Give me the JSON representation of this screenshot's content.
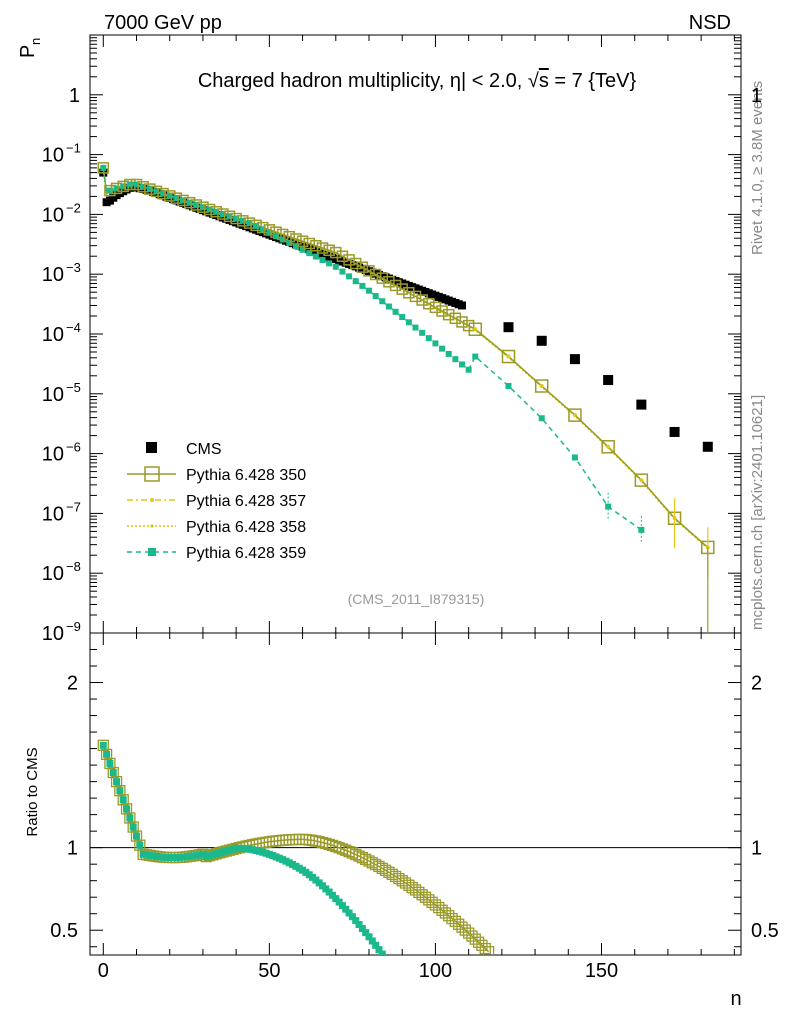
{
  "header": {
    "energy_label": "7000 GeV pp",
    "process_label": "NSD"
  },
  "side_text": {
    "rivet": "Rivet 4.1.0, ≥ 3.8M events",
    "mcplots": "mcplots.cern.ch [arXiv:2401.10621]"
  },
  "analysis_ref": "(CMS_2011_I879315)",
  "chart_data": {
    "type": "scatter",
    "title": "Charged hadron multiplicity, |η| < 2.0, √s = 7 {TeV}",
    "title_parts": {
      "prefix": "Charged hadron multiplicity, ",
      "eta": "η",
      "mid": "| < 2.0, ",
      "sqrt": "√",
      "s": "s",
      "suffix": " = 7 {TeV}"
    },
    "xlabel": "n",
    "ylabel_main": "P",
    "ylabel_main_sub": "n",
    "ylabel_ratio": "Ratio to CMS",
    "xlim": [
      -4,
      192
    ],
    "ylim_main": [
      1e-09,
      10
    ],
    "ylim_ratio": [
      0.35,
      2.3
    ],
    "x_ticks": [
      "0",
      "50",
      "100",
      "150"
    ],
    "y_ticks_main": [
      "1",
      "10",
      "10",
      "10",
      "10",
      "10",
      "10",
      "10",
      "10",
      "10"
    ],
    "y_ticks_main_exp": [
      "",
      "−1",
      "−2",
      "−3",
      "−4",
      "−5",
      "−6",
      "−7",
      "−8",
      "−9"
    ],
    "y_ticks_ratio": [
      "2",
      "1",
      "0.5"
    ],
    "legend": [
      {
        "name": "CMS"
      },
      {
        "name": "Pythia 6.428 350"
      },
      {
        "name": "Pythia 6.428 357"
      },
      {
        "name": "Pythia 6.428 358"
      },
      {
        "name": "Pythia 6.428 359"
      }
    ],
    "cms_far": [
      {
        "x": 122,
        "y": 0.00013
      },
      {
        "x": 132,
        "y": 7.7e-05
      },
      {
        "x": 142,
        "y": 3.8e-05
      },
      {
        "x": 152,
        "y": 1.7e-05
      },
      {
        "x": 162,
        "y": 6.6e-06
      },
      {
        "x": 172,
        "y": 2.3e-06
      },
      {
        "x": 182,
        "y": 1.3e-06
      }
    ],
    "mc350_far": [
      {
        "x": 112,
        "y": 0.00012
      },
      {
        "x": 122,
        "y": 4.2e-05
      },
      {
        "x": 132,
        "y": 1.35e-05
      },
      {
        "x": 142,
        "y": 4.4e-06
      },
      {
        "x": 152,
        "y": 1.3e-06
      },
      {
        "x": 162,
        "y": 3.6e-07
      },
      {
        "x": 172,
        "y": 8.3e-08
      },
      {
        "x": 182,
        "y": 2.7e-08
      }
    ],
    "mc359_far": [
      {
        "x": 112,
        "y": 4.2e-05
      },
      {
        "x": 122,
        "y": 1.35e-05
      },
      {
        "x": 132,
        "y": 3.9e-06
      },
      {
        "x": 142,
        "y": 8.6e-07
      },
      {
        "x": 152,
        "y": 1.3e-07
      },
      {
        "x": 162,
        "y": 5.3e-08
      }
    ],
    "colors": {
      "cms": "#000000",
      "mc350": "#9a9a2a",
      "mc357": "#e6c619",
      "mc358": "#cccc00",
      "mc359": "#1ab98c"
    }
  }
}
